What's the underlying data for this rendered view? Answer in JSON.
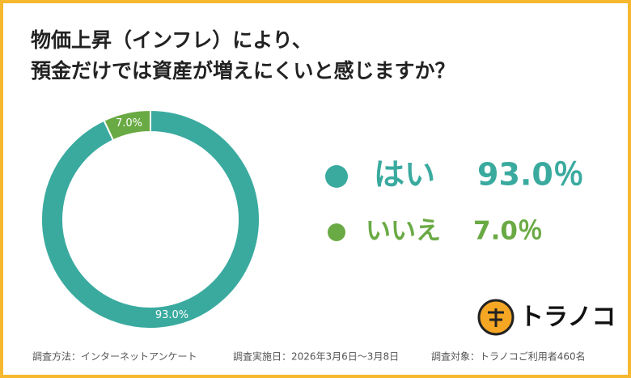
{
  "chart_data": {
    "type": "donut",
    "title": [
      "物価上昇（インフレ）により、",
      "預金だけでは資産が増えにくいと感じますか？"
    ],
    "categories": [
      "はい",
      "いいえ"
    ],
    "values": [
      93.0,
      7.0
    ],
    "value_labels": [
      "93.0%",
      "7.0%"
    ],
    "legend_labels": [
      "93.0％",
      "7.0％"
    ],
    "colors": [
      "#3aaa9f",
      "#6aaa44"
    ],
    "footer": [
      "調査方法：インターネットアンケート",
      "調査実施日：2026年3月6日～3月8日",
      "調査対象：トラノコご利用者460名"
    ],
    "logo": "トラノコ"
  }
}
